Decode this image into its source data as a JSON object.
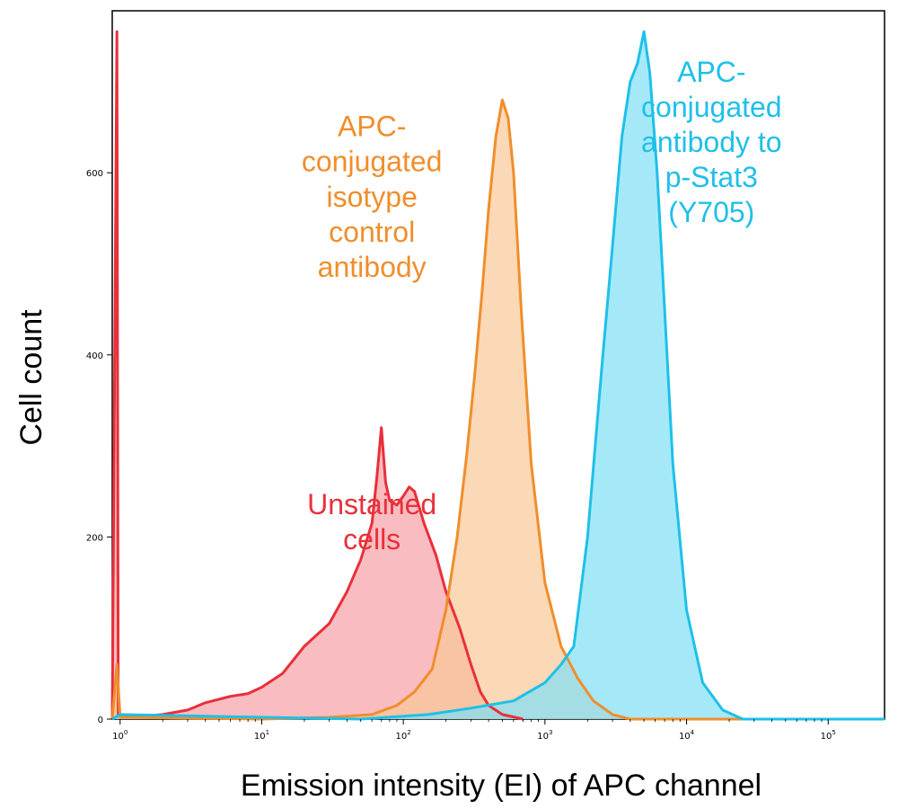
{
  "chart_data": {
    "type": "area",
    "xlabel": "Emission intensity (EI) of APC channel",
    "ylabel": "Cell count",
    "x_scale": "log",
    "xlim": [
      0.88,
      250000
    ],
    "ylim": [
      0,
      770
    ],
    "yticks": [
      0,
      200,
      400,
      600
    ],
    "xticks": [
      {
        "value": 1,
        "base": "10",
        "exp": "0"
      },
      {
        "value": 10,
        "base": "10",
        "exp": "1"
      },
      {
        "value": 100,
        "base": "10",
        "exp": "2"
      },
      {
        "value": 1000,
        "base": "10",
        "exp": "3"
      },
      {
        "value": 10000,
        "base": "10",
        "exp": "4"
      },
      {
        "value": 100000,
        "base": "10",
        "exp": "5"
      }
    ],
    "grid": false,
    "legend": "none",
    "series": [
      {
        "name": "Unstained cells",
        "color": "#e8303a",
        "fill": "#f7a0a6",
        "points": [
          [
            0.88,
            0
          ],
          [
            0.95,
            755
          ],
          [
            0.97,
            5
          ],
          [
            1.2,
            2
          ],
          [
            2.0,
            5
          ],
          [
            3.0,
            10
          ],
          [
            4.0,
            18
          ],
          [
            6.0,
            25
          ],
          [
            8.0,
            28
          ],
          [
            10.0,
            35
          ],
          [
            14.0,
            50
          ],
          [
            20.0,
            80
          ],
          [
            30.0,
            105
          ],
          [
            40.0,
            140
          ],
          [
            50.0,
            175
          ],
          [
            60.0,
            215
          ],
          [
            65.0,
            265
          ],
          [
            70.0,
            320
          ],
          [
            75.0,
            260
          ],
          [
            80.0,
            240
          ],
          [
            90.0,
            235
          ],
          [
            100.0,
            245
          ],
          [
            110.0,
            255
          ],
          [
            120.0,
            250
          ],
          [
            140.0,
            215
          ],
          [
            170.0,
            180
          ],
          [
            200.0,
            140
          ],
          [
            250.0,
            100
          ],
          [
            300.0,
            60
          ],
          [
            350.0,
            30
          ],
          [
            400.0,
            15
          ],
          [
            500.0,
            5
          ],
          [
            700.0,
            0
          ]
        ]
      },
      {
        "name": "APC-conjugated isotype control antibody",
        "color": "#f08e2c",
        "fill": "#f9c897",
        "points": [
          [
            0.88,
            0
          ],
          [
            0.95,
            60
          ],
          [
            1.0,
            2
          ],
          [
            10.0,
            0
          ],
          [
            30.0,
            2
          ],
          [
            60.0,
            5
          ],
          [
            90.0,
            15
          ],
          [
            120.0,
            30
          ],
          [
            160.0,
            55
          ],
          [
            200.0,
            120
          ],
          [
            240.0,
            200
          ],
          [
            280.0,
            290
          ],
          [
            320.0,
            380
          ],
          [
            360.0,
            470
          ],
          [
            400.0,
            560
          ],
          [
            450.0,
            640
          ],
          [
            500.0,
            680
          ],
          [
            550.0,
            660
          ],
          [
            600.0,
            600
          ],
          [
            680.0,
            450
          ],
          [
            800.0,
            280
          ],
          [
            1000.0,
            150
          ],
          [
            1300.0,
            80
          ],
          [
            1700.0,
            45
          ],
          [
            2200.0,
            20
          ],
          [
            3000.0,
            5
          ],
          [
            4000.0,
            0
          ],
          [
            250000.0,
            0
          ]
        ]
      },
      {
        "name": "APC-conjugated antibody to p-Stat3 (Y705)",
        "color": "#1ec0e8",
        "fill": "#7fe0f7",
        "points": [
          [
            0.88,
            0
          ],
          [
            1.0,
            5
          ],
          [
            50.0,
            0
          ],
          [
            150.0,
            5
          ],
          [
            300.0,
            12
          ],
          [
            600.0,
            20
          ],
          [
            1000.0,
            40
          ],
          [
            1300.0,
            60
          ],
          [
            1600.0,
            80
          ],
          [
            2000.0,
            200
          ],
          [
            2500.0,
            380
          ],
          [
            3000.0,
            520
          ],
          [
            3500.0,
            640
          ],
          [
            4000.0,
            700
          ],
          [
            4500.0,
            720
          ],
          [
            5000.0,
            755
          ],
          [
            5500.0,
            710
          ],
          [
            6200.0,
            600
          ],
          [
            7000.0,
            450
          ],
          [
            8000.0,
            280
          ],
          [
            10000.0,
            120
          ],
          [
            13000.0,
            40
          ],
          [
            18000.0,
            10
          ],
          [
            25000.0,
            0
          ],
          [
            250000.0,
            0
          ]
        ]
      }
    ],
    "annotations": [
      {
        "lines": [
          "Unstained",
          "cells"
        ],
        "color": "#e8303a",
        "anchor": "60,225"
      },
      {
        "lines": [
          "APC-",
          "conjugated",
          "isotype",
          "control",
          "antibody"
        ],
        "color": "#f08e2c",
        "anchor": "60,640"
      },
      {
        "lines": [
          "APC-",
          "conjugated",
          "antibody to",
          "p-Stat3",
          "(Y705)"
        ],
        "color": "#1ec0e8",
        "anchor": "15000,700"
      }
    ]
  }
}
